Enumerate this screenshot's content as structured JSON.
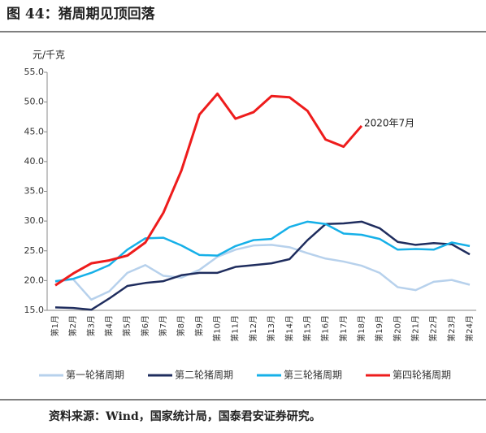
{
  "chart_data": {
    "type": "line",
    "title": "图 44：猪周期见顶回落",
    "y_unit": "元/千克",
    "source": "资料来源：Wind，国家统计局，国泰君安证券研究。",
    "annotation": "2020年7月",
    "categories": [
      "第1月",
      "第2月",
      "第3月",
      "第4月",
      "第5月",
      "第6月",
      "第7月",
      "第8月",
      "第9月",
      "第10月",
      "第11月",
      "第12月",
      "第13月",
      "第14月",
      "第15月",
      "第16月",
      "第17月",
      "第18月",
      "第19月",
      "第20月",
      "第21月",
      "第22月",
      "第23月",
      "第24月"
    ],
    "ylim": [
      15,
      55
    ],
    "yticks": [
      {
        "value": 15,
        "label": "15.0"
      },
      {
        "value": 20,
        "label": "20.0"
      },
      {
        "value": 25,
        "label": "25.0"
      },
      {
        "value": 30,
        "label": "30.0"
      },
      {
        "value": 35,
        "label": "35.0"
      },
      {
        "value": 40,
        "label": "40.0"
      },
      {
        "value": 45,
        "label": "45.0"
      },
      {
        "value": 50,
        "label": "50.0"
      },
      {
        "value": 55,
        "label": "55.0"
      }
    ],
    "series": [
      {
        "name": "第一轮猪周期",
        "color": "#b7d1ec",
        "values": [
          19.8,
          20.2,
          16.8,
          18.2,
          21.3,
          22.6,
          20.8,
          20.5,
          21.8,
          24.0,
          25.2,
          25.9,
          26.0,
          25.6,
          24.6,
          23.7,
          23.2,
          22.5,
          21.3,
          18.9,
          18.4,
          19.8,
          20.1,
          19.3
        ]
      },
      {
        "name": "第二轮猪周期",
        "color": "#1f2d5e",
        "values": [
          15.5,
          15.4,
          15.1,
          17.0,
          19.1,
          19.6,
          19.9,
          20.9,
          21.3,
          21.3,
          22.3,
          22.6,
          22.9,
          23.6,
          26.8,
          29.5,
          29.6,
          29.9,
          28.8,
          26.5,
          26.0,
          26.3,
          26.1,
          24.4
        ]
      },
      {
        "name": "第三轮猪周期",
        "color": "#16b0e8",
        "values": [
          19.9,
          20.3,
          21.3,
          22.6,
          25.2,
          27.1,
          27.2,
          25.9,
          24.3,
          24.2,
          25.8,
          26.8,
          27.0,
          29.0,
          29.9,
          29.5,
          27.9,
          27.7,
          27.0,
          25.2,
          25.3,
          25.2,
          26.4,
          25.8
        ]
      },
      {
        "name": "第四轮猪周期",
        "color": "#ee1c1c",
        "values": [
          19.2,
          21.2,
          22.9,
          23.4,
          24.2,
          26.4,
          31.4,
          38.5,
          47.9,
          51.4,
          47.2,
          48.3,
          51.0,
          50.8,
          48.5,
          43.7,
          42.5,
          46.0,
          null,
          null,
          null,
          null,
          null,
          null
        ]
      }
    ]
  }
}
